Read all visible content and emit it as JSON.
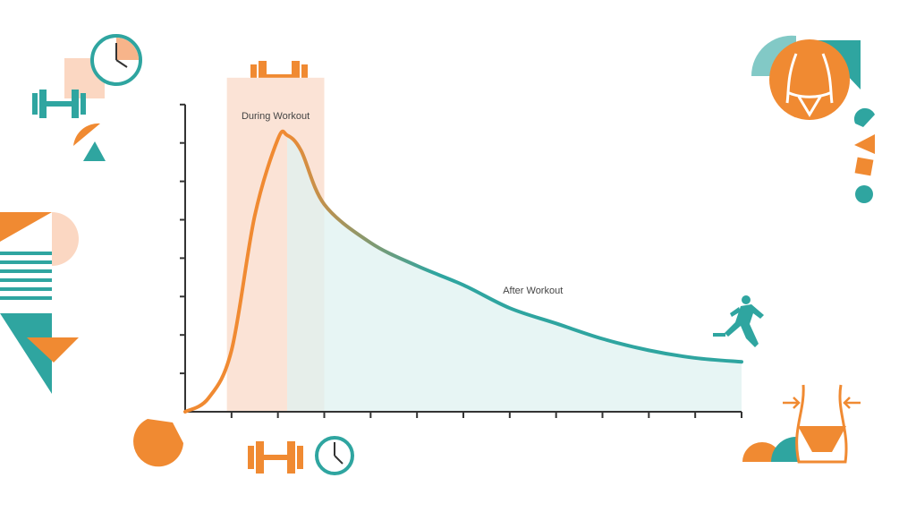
{
  "chart_data": {
    "type": "area",
    "x": [
      0,
      0.5,
      1,
      1.5,
      2,
      2.2,
      2.5,
      3,
      4,
      5,
      6,
      7,
      8,
      9,
      10,
      11,
      12
    ],
    "series": [
      {
        "values": [
          0,
          0.35,
          1.6,
          5.1,
          7.1,
          7.2,
          6.8,
          5.4,
          4.4,
          3.8,
          3.3,
          2.7,
          2.3,
          1.9,
          1.6,
          1.4,
          1.3
        ]
      }
    ],
    "xlim": [
      0,
      12
    ],
    "xticks": [
      1,
      2,
      3,
      4,
      5,
      6,
      7,
      8,
      9,
      10,
      11,
      12
    ],
    "ylim": [
      0,
      8
    ],
    "yticks": [
      1,
      2,
      3,
      4,
      5,
      6,
      7,
      8
    ],
    "regions": [
      {
        "label": "During Workout",
        "start": 0.9,
        "end": 3
      },
      {
        "label": "After Workout",
        "start": 2.2,
        "end": 12,
        "label_x": 7.5,
        "label_y": 3.15
      }
    ],
    "colors": {
      "start": "#f08a32",
      "end": "#2fa5a0",
      "during": "#fbe3d6",
      "after": "#dff1f0"
    }
  }
}
